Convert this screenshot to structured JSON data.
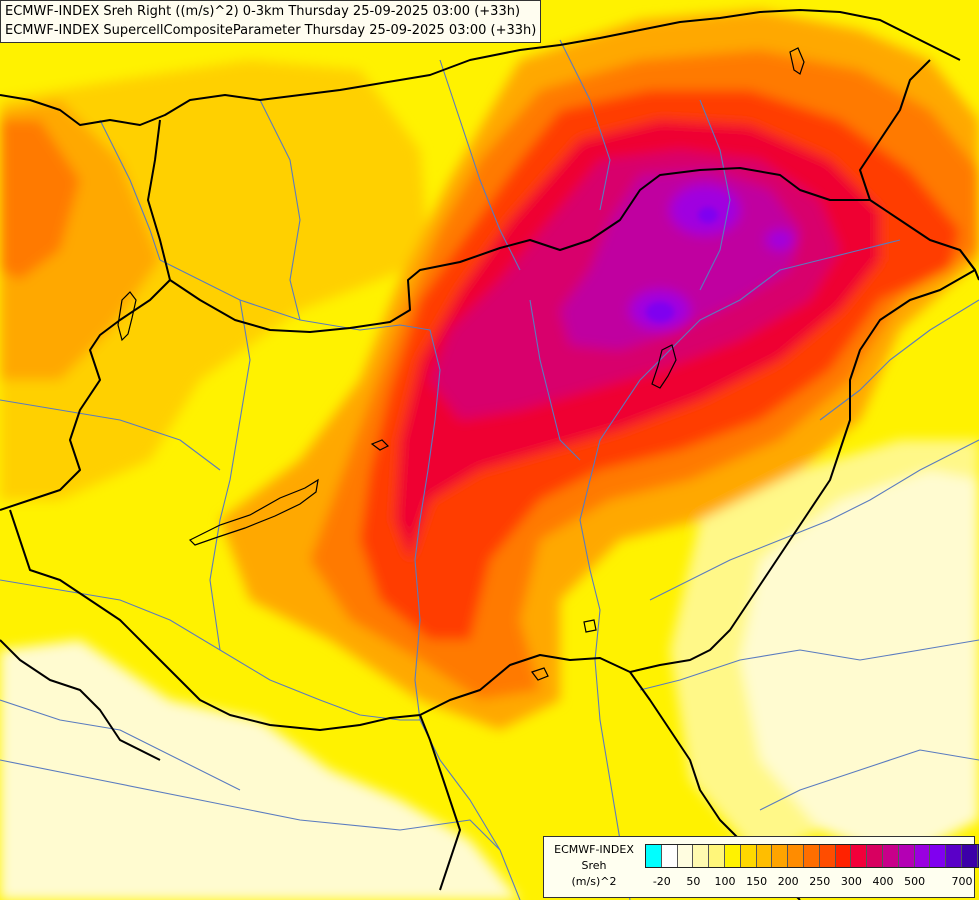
{
  "header": {
    "line1": "ECMWF-INDEX Sreh Right ((m/s)^2) 0-3km Thursday 25-09-2025 03:00 (+33h)",
    "line2": "ECMWF-INDEX SupercellCompositeParameter Thursday 25-09-2025 03:00 (+33h)"
  },
  "legend": {
    "title": "ECMWF-INDEX",
    "variable": "Sreh",
    "unit": "(m/s)^2",
    "ticks": [
      "-20",
      "50",
      "100",
      "150",
      "200",
      "250",
      "300",
      "400",
      "500",
      "700"
    ],
    "colors": [
      "#00ffff",
      "#ffffff",
      "#fffde0",
      "#fffab0",
      "#fff67a",
      "#fff200",
      "#ffd800",
      "#ffbe00",
      "#ffa400",
      "#ff8c00",
      "#ff6e00",
      "#ff4d00",
      "#ff2200",
      "#f2003a",
      "#d80060",
      "#c8008a",
      "#b400b4",
      "#9a00e0",
      "#8000f0",
      "#5a00c8",
      "#3c00a8",
      "#200080"
    ]
  },
  "map": {
    "colors": {
      "pale": "#fffbd0",
      "lightyellow": "#fff888",
      "yellow": "#fff200",
      "gold": "#ffd000",
      "orange": "#ffa800",
      "darkorange": "#ff7a00",
      "red": "#ff3c00",
      "crimson": "#ef0030",
      "magenta": "#d8006c",
      "purple": "#c000a0",
      "violet": "#a000e0",
      "border": "#000000",
      "river": "#5a7bbf"
    }
  }
}
